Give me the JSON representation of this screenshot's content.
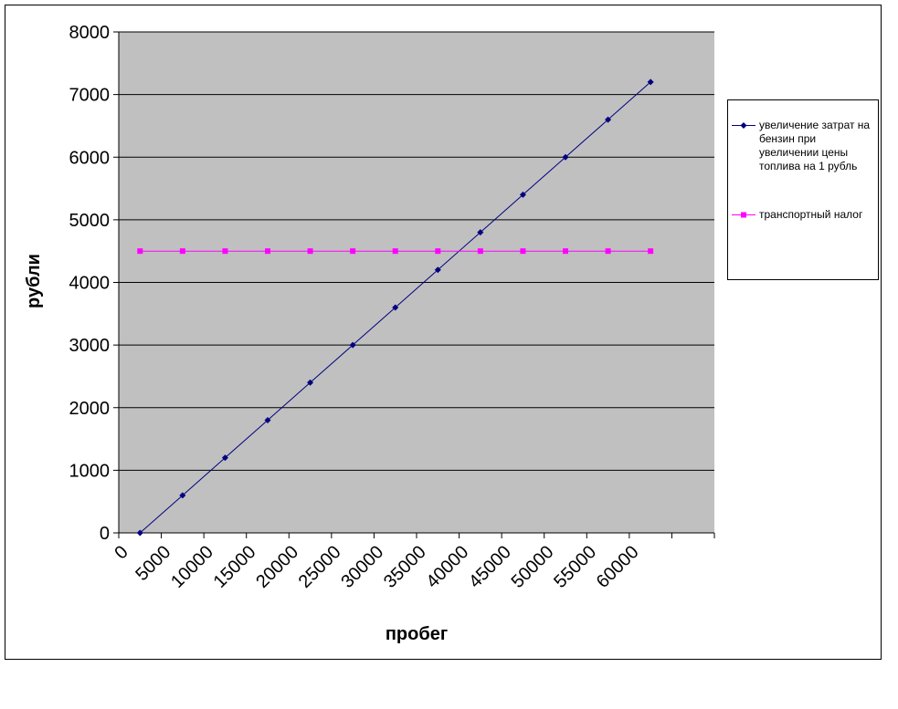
{
  "chart_data": {
    "type": "line",
    "x_label": "пробег",
    "y_label": "рубли",
    "categories": [
      0,
      5000,
      10000,
      15000,
      20000,
      25000,
      30000,
      35000,
      40000,
      45000,
      50000,
      55000,
      60000,
      null
    ],
    "series": [
      {
        "name": "увеличение затрат на бензин при увеличении цены топлива на 1 рубль",
        "color": "#000080",
        "marker": "diamond",
        "values": [
          0,
          600,
          1200,
          1800,
          2400,
          3000,
          3600,
          4200,
          4800,
          5400,
          6000,
          6600,
          7200,
          null
        ]
      },
      {
        "name": "транспортный налог",
        "color": "#ff00ff",
        "marker": "square",
        "values": [
          4500,
          4500,
          4500,
          4500,
          4500,
          4500,
          4500,
          4500,
          4500,
          4500,
          4500,
          4500,
          4500,
          null
        ]
      }
    ],
    "ylim": [
      0,
      8000
    ],
    "yticks": [
      0,
      1000,
      2000,
      3000,
      4000,
      5000,
      6000,
      7000,
      8000
    ],
    "grid": true,
    "legend": "right",
    "plot_background": "#c0c0c0"
  }
}
